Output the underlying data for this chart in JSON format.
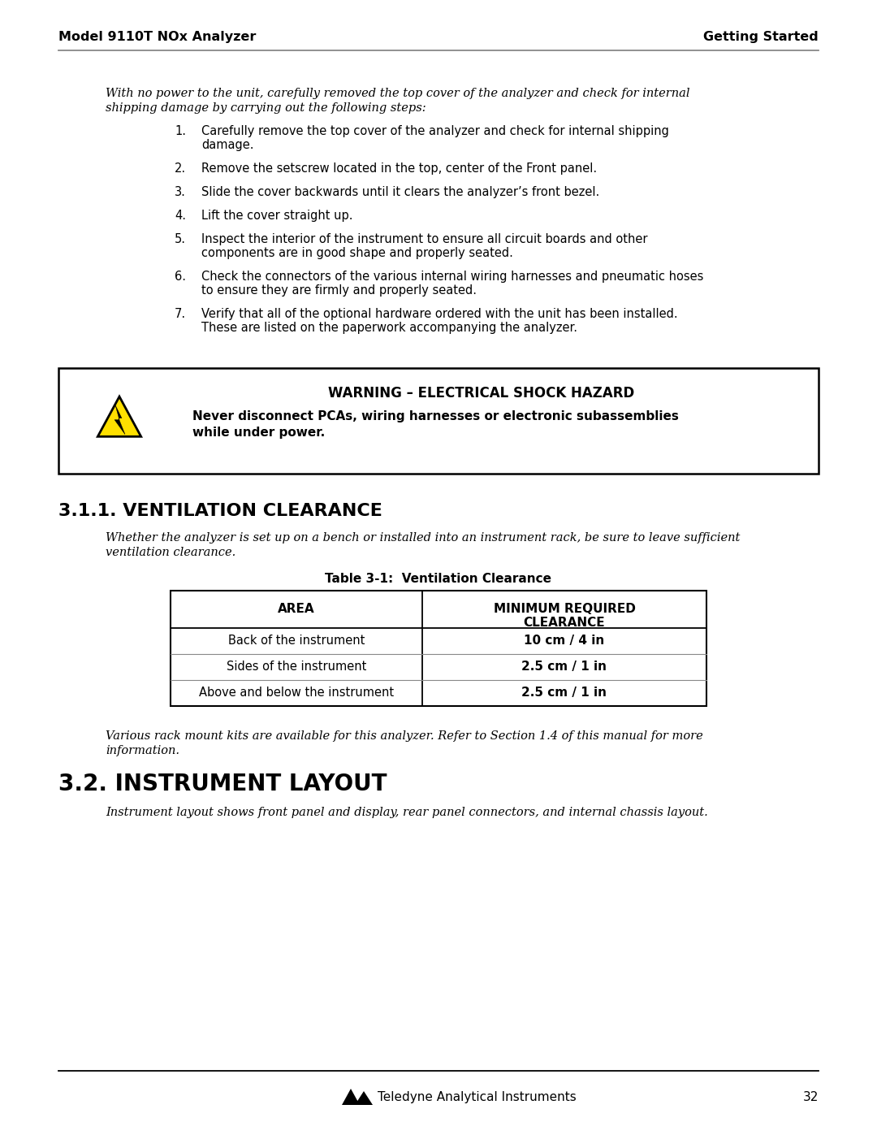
{
  "page_header_left": "Model 9110T NOx Analyzer",
  "page_header_right": "Getting Started",
  "page_number": "32",
  "footer_text": "Teledyne Analytical Instruments",
  "intro_text_line1": "With no power to the unit, carefully removed the top cover of the analyzer and check for internal",
  "intro_text_line2": "shipping damage by carrying out the following steps:",
  "steps": [
    [
      "Carefully remove the top cover of the analyzer and check for internal shipping",
      "damage."
    ],
    [
      "Remove the setscrew located in the top, center of the Front panel."
    ],
    [
      "Slide the cover backwards until it clears the analyzer’s front bezel."
    ],
    [
      "Lift the cover straight up."
    ],
    [
      "Inspect the interior of the instrument to ensure all circuit boards and other",
      "components are in good shape and properly seated."
    ],
    [
      "Check the connectors of the various internal wiring harnesses and pneumatic hoses",
      "to ensure they are firmly and properly seated."
    ],
    [
      "Verify that all of the optional hardware ordered with the unit has been installed.",
      "These are listed on the paperwork accompanying the analyzer."
    ]
  ],
  "warning_title": "WARNING – ELECTRICAL SHOCK HAZARD",
  "warning_body_line1": "Never disconnect PCAs, wiring harnesses or electronic subassemblies",
  "warning_body_line2": "while under power.",
  "section_311_title": "3.1.1. VENTILATION CLEARANCE",
  "section_311_intro_line1": "Whether the analyzer is set up on a bench or installed into an instrument rack, be sure to leave sufficient",
  "section_311_intro_line2": "ventilation clearance.",
  "table_title": "Table 3-1:  Ventilation Clearance",
  "table_col1_header": "AREA",
  "table_col2_header_line1": "MINIMUM REQUIRED",
  "table_col2_header_line2": "CLEARANCE",
  "table_rows": [
    [
      "Back of the instrument",
      "10 cm / 4 in"
    ],
    [
      "Sides of the instrument",
      "2.5 cm / 1 in"
    ],
    [
      "Above and below the instrument",
      "2.5 cm / 1 in"
    ]
  ],
  "section_311_outro_line1": "Various rack mount kits are available for this analyzer. Refer to Section 1.4 of this manual for more",
  "section_311_outro_line2": "information.",
  "section_32_title": "3.2. INSTRUMENT LAYOUT",
  "section_32_intro": "Instrument layout shows front panel and display, rear panel connectors, and internal chassis layout.",
  "bg_color": "#ffffff",
  "text_color": "#000000",
  "header_line_color": "#888888"
}
